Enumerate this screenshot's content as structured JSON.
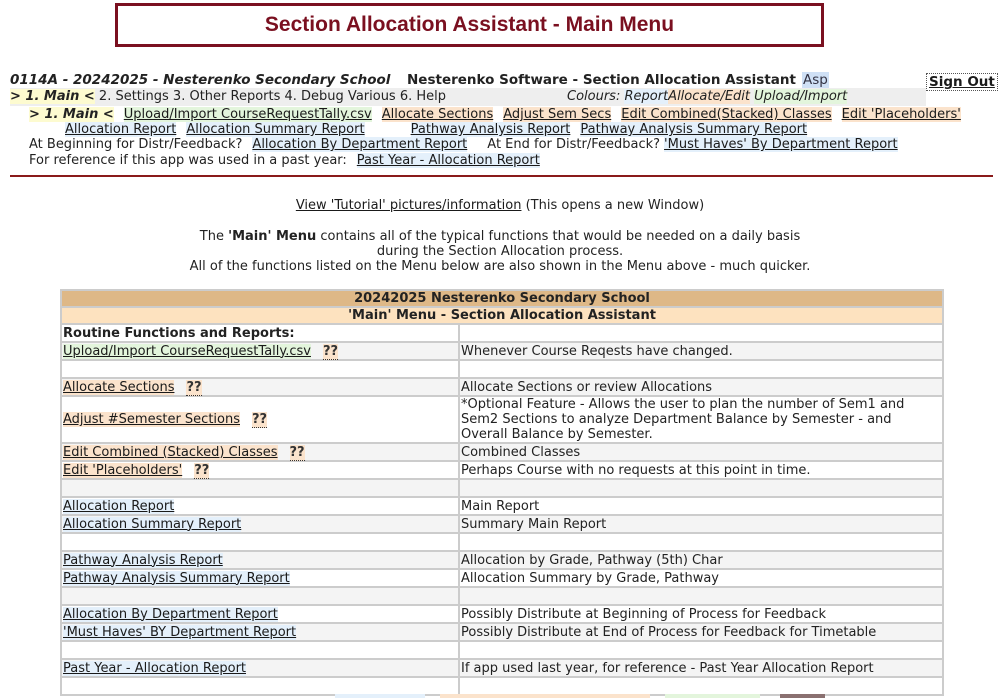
{
  "title": "Section Allocation Assistant - Main Menu",
  "header": {
    "school": "0114A - 20242025 - Nesterenko Secondary School",
    "software": "Nesterenko Software - Section Allocation Assistant",
    "asp": "Asp",
    "sign_out": "Sign Out"
  },
  "nav": {
    "items": [
      "> 1. Main <",
      "2. Settings",
      "3. Other Reports",
      "4. Debug Various",
      "6. Help"
    ],
    "colours_label": "Colours:",
    "colours": [
      "Report",
      "Allocate/Edit",
      "Upload/Import"
    ]
  },
  "submenu": {
    "current": "> 1. Main <",
    "row1": [
      "Upload/Import CourseRequestTally.csv",
      "Allocate Sections",
      "Adjust Sem Secs",
      "Edit Combined(Stacked) Classes",
      "Edit 'Placeholders'"
    ],
    "row2": [
      "Allocation Report",
      "Allocation Summary Report",
      "Pathway Analysis Report",
      "Pathway Analysis Summary Report"
    ],
    "begin_label": "At Beginning for Distr/Feedback?",
    "begin_link": "Allocation By Department Report",
    "end_label": "At End for Distr/Feedback?",
    "end_link": "'Must Haves' By Department Report",
    "past_label": "For reference if this app was used in a past year:",
    "past_link": "Past Year - Allocation Report"
  },
  "tutorial": {
    "link": "View 'Tutorial' pictures/information",
    "note": "(This opens a new Window)"
  },
  "intro": {
    "pre": "The",
    "bold": "'Main' Menu",
    "post": "contains all of the typical functions that would be needed on a daily basis",
    "line2": "during the Section Allocation process.",
    "line3": "All of the functions listed on the Menu below are also shown in the Menu above - much quicker."
  },
  "table": {
    "title": "20242025 Nesterenko Secondary School",
    "subtitle": "'Main' Menu - Section Allocation Assistant",
    "section": "Routine Functions and Reports:",
    "help": "??",
    "rows": [
      {
        "link": "Upload/Import CourseRequestTally.csv",
        "desc": "Whenever Course Reqests have changed.",
        "help": true,
        "kind": "upl"
      },
      {
        "blank": true
      },
      {
        "link": "Allocate Sections",
        "desc": "Allocate Sections or review Allocations",
        "help": true,
        "kind": "edt"
      },
      {
        "link": "Adjust #Semester Sections",
        "desc": "*Optional Feature - Allows the user to plan the number of Sem1 and Sem2 Sections to analyze Department Balance by Semester - and Overall Balance by Semester.",
        "help": true,
        "kind": "edt",
        "tall": true
      },
      {
        "link": "Edit Combined (Stacked) Classes",
        "desc": "Combined Classes",
        "help": true,
        "kind": "edt"
      },
      {
        "link": "Edit 'Placeholders'",
        "desc": "Perhaps Course with no requests at this point in time.",
        "help": true,
        "kind": "edt"
      },
      {
        "blank": true
      },
      {
        "link": "Allocation Report",
        "desc": "Main Report",
        "kind": "rep"
      },
      {
        "link": "Allocation Summary Report",
        "desc": "Summary Main Report",
        "kind": "rep"
      },
      {
        "blank": true
      },
      {
        "link": "Pathway Analysis Report",
        "desc": "Allocation by Grade, Pathway (5th) Char",
        "kind": "rep"
      },
      {
        "link": "Pathway Analysis Summary Report",
        "desc": "Allocation Summary by Grade, Pathway",
        "kind": "rep"
      },
      {
        "blank": true
      },
      {
        "link": "Allocation By Department Report",
        "desc": "Possibly Distribute at Beginning of Process for Feedback",
        "kind": "rep"
      },
      {
        "link": "'Must Haves' BY Department Report",
        "desc": "Possibly Distribute at End of Process for Feedback for Timetable",
        "kind": "rep"
      },
      {
        "blank": true
      },
      {
        "link": "Past Year - Allocation Report",
        "desc": "If app used last year, for reference - Past Year Allocation Report",
        "kind": "rep"
      },
      {
        "blank": true
      }
    ]
  },
  "colors": {
    "brand": "#7a1020",
    "report": "#e4f0fb",
    "edit": "#fbe3cc",
    "upload": "#e3f5dc",
    "table_head": "#deb887"
  }
}
